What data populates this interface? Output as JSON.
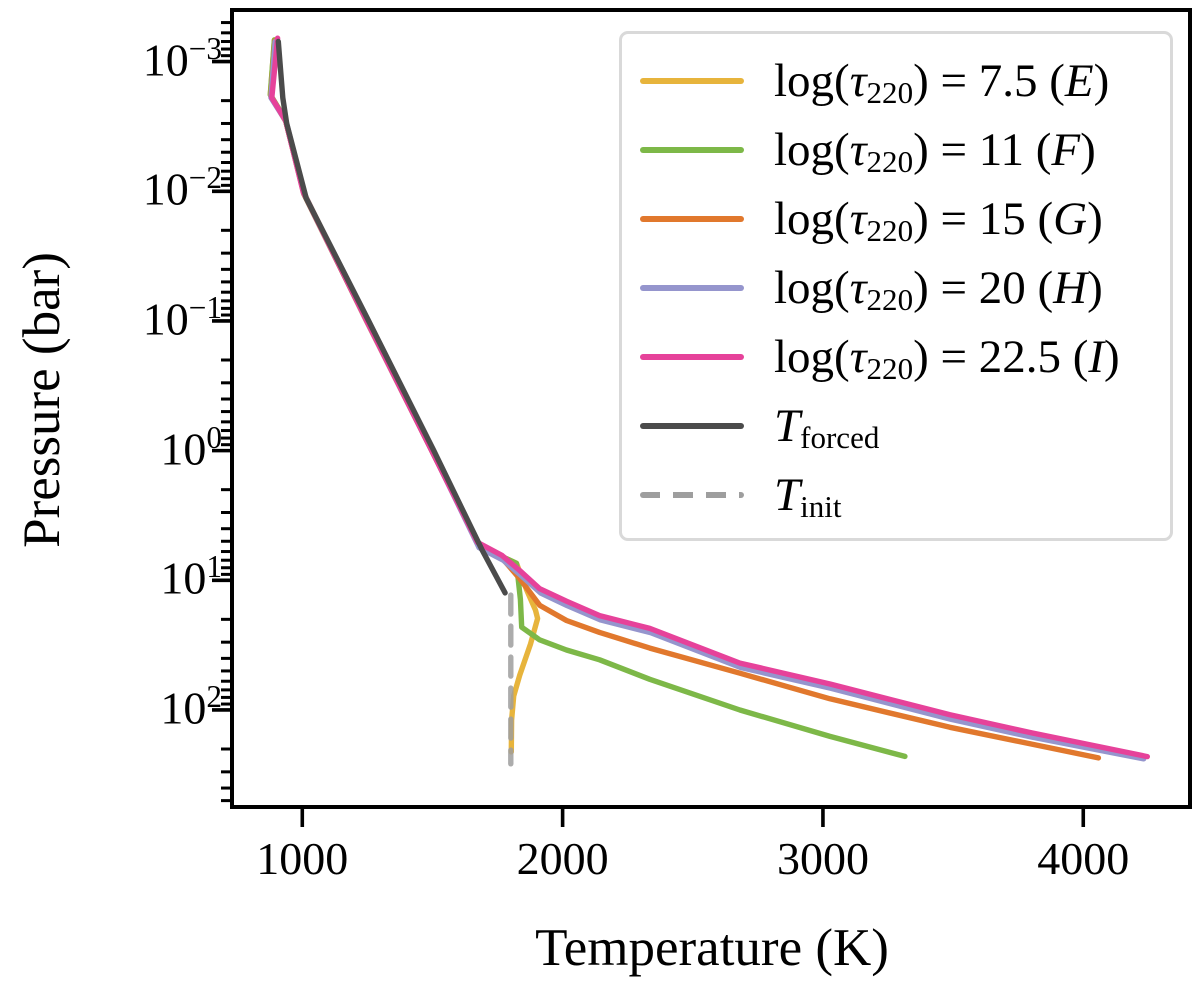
{
  "chart_data": {
    "type": "line",
    "title": "",
    "xlabel": "Temperature (K)",
    "ylabel": "Pressure (bar)",
    "x_scale": "linear",
    "y_scale": "log",
    "y_inverted": true,
    "xlim": [
      730,
      4410
    ],
    "ylim": [
      0.0004,
      560
    ],
    "grid": false,
    "legend_position": "upper right",
    "x_ticks": [
      {
        "value": 1000,
        "label": "1000"
      },
      {
        "value": 2000,
        "label": "2000"
      },
      {
        "value": 3000,
        "label": "3000"
      },
      {
        "value": 4000,
        "label": "4000"
      }
    ],
    "y_ticks": [
      {
        "value": 0.001,
        "base": "10",
        "exponent": "−3"
      },
      {
        "value": 0.01,
        "base": "10",
        "exponent": "−2"
      },
      {
        "value": 0.1,
        "base": "10",
        "exponent": "−1"
      },
      {
        "value": 1,
        "base": "10",
        "exponent": "0"
      },
      {
        "value": 10,
        "base": "10",
        "exponent": "1"
      },
      {
        "value": 100,
        "base": "10",
        "exponent": "2"
      }
    ],
    "series": [
      {
        "id": "tau-7p5-E",
        "label_text": "log(τ220) = 7.5 (E)",
        "label_parts": [
          {
            "t": "log("
          },
          {
            "t": "τ",
            "it": true
          },
          {
            "t": "220",
            "sub": true
          },
          {
            "t": ") = 7.5 ("
          },
          {
            "t": "E",
            "it": true
          },
          {
            "t": ")"
          }
        ],
        "color": "#e7b43c",
        "dash": false,
        "points": [
          [
            893,
            0.00068
          ],
          [
            877,
            0.0018
          ],
          [
            935,
            0.0028
          ],
          [
            1006,
            0.0105
          ],
          [
            1247,
            0.1
          ],
          [
            1497,
            1.0
          ],
          [
            1675,
            5.2
          ],
          [
            1770,
            6.6
          ],
          [
            1823,
            7.4
          ],
          [
            1862,
            11.9
          ],
          [
            1896,
            17.0
          ],
          [
            1904,
            19.7
          ],
          [
            1877,
            30.8
          ],
          [
            1835,
            54
          ],
          [
            1812,
            78
          ],
          [
            1804,
            120
          ],
          [
            1803,
            210
          ]
        ]
      },
      {
        "id": "tau-11-F",
        "label_text": "log(τ220) = 11 (F)",
        "label_parts": [
          {
            "t": "log("
          },
          {
            "t": "τ",
            "it": true
          },
          {
            "t": "220",
            "sub": true
          },
          {
            "t": ") = 11 ("
          },
          {
            "t": "F",
            "it": true
          },
          {
            "t": ")"
          }
        ],
        "color": "#7db848",
        "dash": false,
        "points": [
          [
            893,
            0.00068
          ],
          [
            877,
            0.0018
          ],
          [
            935,
            0.0028
          ],
          [
            1006,
            0.0105
          ],
          [
            1247,
            0.1
          ],
          [
            1497,
            1.0
          ],
          [
            1675,
            5.2
          ],
          [
            1770,
            6.6
          ],
          [
            1823,
            7.4
          ],
          [
            1838,
            14
          ],
          [
            1843,
            23
          ],
          [
            1912,
            28.8
          ],
          [
            2015,
            34.5
          ],
          [
            2142,
            41
          ],
          [
            2335,
            58
          ],
          [
            2681,
            100
          ],
          [
            3027,
            160
          ],
          [
            3315,
            228
          ]
        ]
      },
      {
        "id": "tau-15-G",
        "label_text": "log(τ220) = 15 (G)",
        "label_parts": [
          {
            "t": "log("
          },
          {
            "t": "τ",
            "it": true
          },
          {
            "t": "220",
            "sub": true
          },
          {
            "t": ") = 15 ("
          },
          {
            "t": "G",
            "it": true
          },
          {
            "t": ")"
          }
        ],
        "color": "#e1782d",
        "dash": false,
        "points": [
          [
            895,
            0.00069
          ],
          [
            879,
            0.00185
          ],
          [
            937,
            0.0029
          ],
          [
            1008,
            0.0105
          ],
          [
            1249,
            0.1
          ],
          [
            1499,
            1.0
          ],
          [
            1678,
            5.3
          ],
          [
            1769,
            6.8
          ],
          [
            1835,
            9.7
          ],
          [
            1912,
            15.6
          ],
          [
            2015,
            20.4
          ],
          [
            2142,
            25.2
          ],
          [
            2335,
            33.3
          ],
          [
            2681,
            52
          ],
          [
            3027,
            82
          ],
          [
            3488,
            136
          ],
          [
            3800,
            183
          ],
          [
            4058,
            234
          ]
        ]
      },
      {
        "id": "tau-20-H",
        "label_text": "log(τ220) = 20 (H)",
        "label_parts": [
          {
            "t": "log("
          },
          {
            "t": "τ",
            "it": true
          },
          {
            "t": "220",
            "sub": true
          },
          {
            "t": ") = 20 ("
          },
          {
            "t": "H",
            "it": true
          },
          {
            "t": ")"
          }
        ],
        "color": "#9595cd",
        "dash": false,
        "points": [
          [
            896,
            0.0007
          ],
          [
            880,
            0.0019
          ],
          [
            938,
            0.0029
          ],
          [
            1009,
            0.0106
          ],
          [
            1250,
            0.102
          ],
          [
            1500,
            1.02
          ],
          [
            1679,
            5.6
          ],
          [
            1772,
            7.0
          ],
          [
            1838,
            9.1
          ],
          [
            1915,
            12.5
          ],
          [
            2018,
            15.7
          ],
          [
            2145,
            20.2
          ],
          [
            2338,
            25.3
          ],
          [
            2684,
            47
          ],
          [
            3030,
            68
          ],
          [
            3491,
            118
          ],
          [
            3803,
            162
          ],
          [
            4232,
            238
          ]
        ]
      },
      {
        "id": "tau-22p5-I",
        "label_text": "log(τ220) = 22.5 (I)",
        "label_parts": [
          {
            "t": "log("
          },
          {
            "t": "τ",
            "it": true
          },
          {
            "t": "220",
            "sub": true
          },
          {
            "t": ") = 22.5 ("
          },
          {
            "t": "I",
            "it": true
          },
          {
            "t": ")"
          }
        ],
        "color": "#e6429a",
        "dash": false,
        "points": [
          [
            905,
            0.00066
          ],
          [
            883,
            0.0019
          ],
          [
            936,
            0.00285
          ],
          [
            1004,
            0.0102
          ],
          [
            1245,
            0.098
          ],
          [
            1495,
            0.98
          ],
          [
            1673,
            5.1
          ],
          [
            1766,
            6.4
          ],
          [
            1835,
            8.4
          ],
          [
            1912,
            11.6
          ],
          [
            2015,
            14.5
          ],
          [
            2142,
            18.7
          ],
          [
            2335,
            23.5
          ],
          [
            2681,
            43.5
          ],
          [
            3027,
            63
          ],
          [
            3488,
            109
          ],
          [
            3800,
            150
          ],
          [
            4246,
            229
          ]
        ]
      },
      {
        "id": "T-forced",
        "label_text": "Tforced",
        "label_parts": [
          {
            "t": "T",
            "it": true
          },
          {
            "t": "forced",
            "sub": true
          }
        ],
        "color": "#4b4b4b",
        "dash": false,
        "points": [
          [
            908,
            0.0007
          ],
          [
            925,
            0.0019
          ],
          [
            940,
            0.003
          ],
          [
            1015,
            0.0113
          ],
          [
            1255,
            0.1
          ],
          [
            1505,
            1.0
          ],
          [
            1690,
            5.8
          ],
          [
            1779,
            12.5
          ]
        ]
      },
      {
        "id": "T-init",
        "label_text": "Tinit",
        "label_parts": [
          {
            "t": "T",
            "it": true
          },
          {
            "t": "init",
            "sub": true
          }
        ],
        "color": "#9e9e9e",
        "dash": true,
        "points": [
          [
            1801,
            13
          ],
          [
            1801,
            260
          ]
        ]
      }
    ]
  }
}
